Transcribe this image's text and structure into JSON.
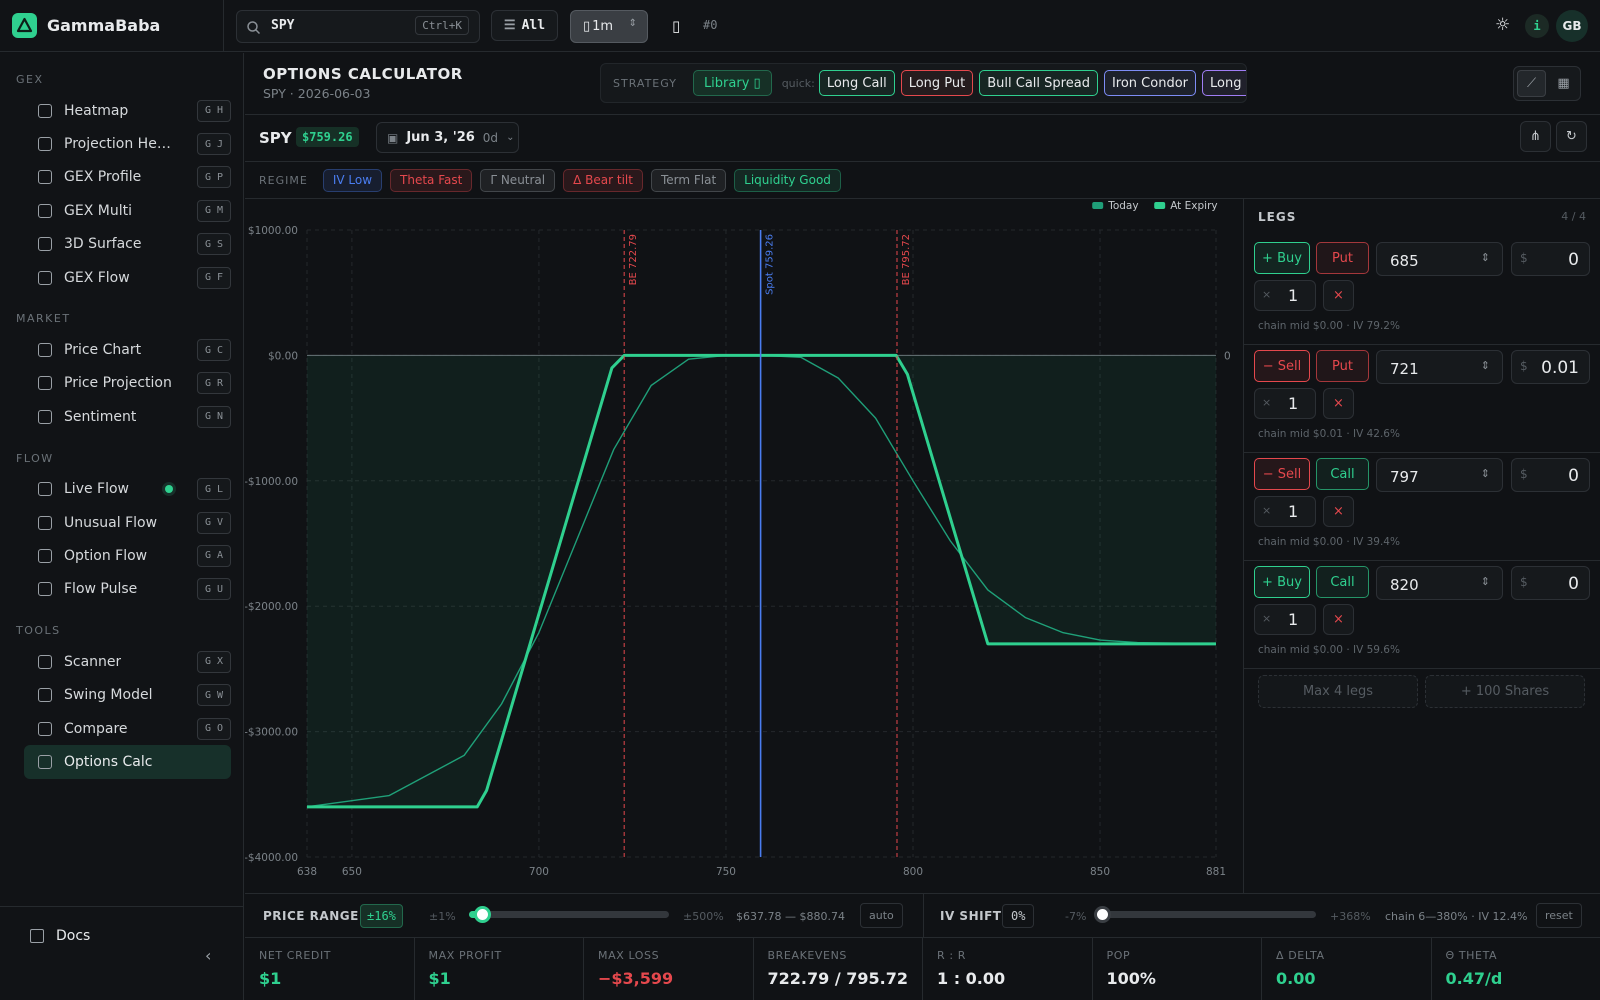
{
  "header": {
    "brand": "GammaBaba",
    "search": "SPY",
    "search_shortcut": "Ctrl+K",
    "filter": "All",
    "interval": "1m",
    "hash": "#0",
    "info": "i",
    "avatar": "GB"
  },
  "sidebar": {
    "sections": [
      {
        "title": "GEX",
        "items": [
          {
            "label": "Heatmap",
            "keys": "G H"
          },
          {
            "label": "Projection Heatmap",
            "keys": "G J"
          },
          {
            "label": "GEX Profile",
            "keys": "G P"
          },
          {
            "label": "GEX Multi",
            "keys": "G M"
          },
          {
            "label": "3D Surface",
            "keys": "G S"
          },
          {
            "label": "GEX Flow",
            "keys": "G F"
          }
        ]
      },
      {
        "title": "MARKET",
        "items": [
          {
            "label": "Price Chart",
            "keys": "G C"
          },
          {
            "label": "Price Projection",
            "keys": "G R"
          },
          {
            "label": "Sentiment",
            "keys": "G N"
          }
        ]
      },
      {
        "title": "FLOW",
        "items": [
          {
            "label": "Live Flow",
            "keys": "G L",
            "live": true
          },
          {
            "label": "Unusual Flow",
            "keys": "G V"
          },
          {
            "label": "Option Flow",
            "keys": "G A"
          },
          {
            "label": "Flow Pulse",
            "keys": "G U"
          }
        ]
      },
      {
        "title": "TOOLS",
        "items": [
          {
            "label": "Scanner",
            "keys": "G X"
          },
          {
            "label": "Swing Model",
            "keys": "G W"
          },
          {
            "label": "Compare",
            "keys": "G O"
          },
          {
            "label": "Options Calc",
            "active": true
          }
        ]
      }
    ],
    "docs": "Docs"
  },
  "page": {
    "title": "OPTIONS CALCULATOR",
    "subtitle": "SPY · 2026-06-03",
    "strategy_label": "STRATEGY",
    "library": "Library",
    "quick_label": "quick:",
    "quick": [
      {
        "label": "Long Call",
        "color": "#2fd08f"
      },
      {
        "label": "Long Put",
        "color": "#e5484d"
      },
      {
        "label": "Bull Call Spread",
        "color": "#2fd08f"
      },
      {
        "label": "Iron Condor",
        "color": "#7d8cf5"
      },
      {
        "label": "Long Strangle",
        "color": "#a07df5"
      }
    ]
  },
  "ticker": {
    "symbol": "SPY",
    "price": "$759.26",
    "date": "Jun 3, '26",
    "dte": "0d"
  },
  "regime": {
    "label": "REGIME",
    "tags": [
      {
        "label": "IV Low",
        "color": "#4a7df0"
      },
      {
        "label": "Theta Fast",
        "color": "#e5484d"
      },
      {
        "label": "Γ Neutral",
        "color": "#8a9096"
      },
      {
        "label": "Δ Bear tilt",
        "color": "#e5484d"
      },
      {
        "label": "Term Flat",
        "color": "#8a9096"
      },
      {
        "label": "Liquidity Good",
        "color": "#2fd08f"
      }
    ]
  },
  "chart_data": {
    "type": "line",
    "series": [
      {
        "name": "Today",
        "color": "#1f9e78",
        "x": [
          638,
          660,
          680,
          690,
          700,
          710,
          720,
          730,
          740,
          750,
          760,
          770,
          780,
          790,
          800,
          810,
          820,
          830,
          840,
          850,
          860,
          881
        ],
        "values": [
          -3600,
          -3510,
          -3190,
          -2780,
          -2210,
          -1480,
          -750,
          -240,
          -30,
          0,
          0,
          -15,
          -180,
          -500,
          -1000,
          -1480,
          -1870,
          -2090,
          -2210,
          -2270,
          -2290,
          -2300
        ]
      },
      {
        "name": "At Expiry",
        "color": "#2fd08f",
        "x": [
          638,
          683.5,
          686,
          719.5,
          722.8,
          795.5,
          798.5,
          820,
          881
        ],
        "values": [
          -3600,
          -3600,
          -3470,
          -100,
          0,
          0,
          -150,
          -2300,
          -2300
        ]
      }
    ],
    "xlim": [
      638,
      881
    ],
    "xticks": [
      638,
      650,
      700,
      750,
      800,
      850,
      881
    ],
    "ylim": [
      -4000,
      1000
    ],
    "yticks": [
      {
        "value": 1000,
        "label": "$1000.00"
      },
      {
        "value": 0,
        "label": "$0.00"
      },
      {
        "value": -1000,
        "label": "-$1000.00"
      },
      {
        "value": -2000,
        "label": "-$2000.00"
      },
      {
        "value": -3000,
        "label": "-$3000.00"
      },
      {
        "value": -4000,
        "label": "-$4000.00"
      }
    ],
    "y2lim": [
      -4000,
      1000
    ],
    "y2ticks": [
      0
    ],
    "annotations": [
      {
        "label": "BE 722.79",
        "x": 722.79,
        "color": "#e5484d",
        "style": "dashed"
      },
      {
        "label": "Spot 759.26",
        "x": 759.26,
        "color": "#4a7df0",
        "style": "solid"
      },
      {
        "label": "BE 795.72",
        "x": 795.72,
        "color": "#e5484d",
        "style": "dashed"
      }
    ],
    "grid": true,
    "legend": "top-right"
  },
  "legs": {
    "title": "LEGS",
    "count": "4 / 4",
    "currency": "$",
    "qty_prefix": "×",
    "remove": "×",
    "items": [
      {
        "side": "+ Buy",
        "side_color": "#2fd08f",
        "type": "Put",
        "type_color": "#e5484d",
        "strike": "685",
        "premium": "0",
        "qty": "1",
        "info": "chain mid $0.00 · IV 79.2%"
      },
      {
        "side": "− Sell",
        "side_color": "#e5484d",
        "type": "Put",
        "type_color": "#e5484d",
        "strike": "721",
        "premium": "0.01",
        "qty": "1",
        "info": "chain mid $0.01 · IV 42.6%"
      },
      {
        "side": "− Sell",
        "side_color": "#e5484d",
        "type": "Call",
        "type_color": "#2fd08f",
        "strike": "797",
        "premium": "0",
        "qty": "1",
        "info": "chain mid $0.00 · IV 39.4%"
      },
      {
        "side": "+ Buy",
        "side_color": "#2fd08f",
        "type": "Call",
        "type_color": "#2fd08f",
        "strike": "820",
        "premium": "0",
        "qty": "1",
        "info": "chain mid $0.00 · IV 59.6%"
      }
    ],
    "buttons": [
      "Max 4 legs",
      "+ 100 Shares"
    ]
  },
  "controls": {
    "price_range": {
      "label": "PRICE RANGE",
      "value": "±16%",
      "min": "±1%",
      "max": "±500%",
      "range": "$637.78 — $880.74",
      "auto": "auto"
    },
    "iv_shift": {
      "label": "IV SHIFT",
      "value": "0%",
      "min": "-7%",
      "max": "+368%",
      "info": "chain 6—380% · IV 12.4%",
      "reset": "reset"
    }
  },
  "stats": [
    {
      "label": "NET CREDIT",
      "value": "$1",
      "color": "#2fd08f"
    },
    {
      "label": "MAX PROFIT",
      "value": "$1",
      "color": "#2fd08f"
    },
    {
      "label": "MAX LOSS",
      "value": "−$3,599",
      "color": "#e5484d"
    },
    {
      "label": "BREAKEVENS",
      "value": "722.79 / 795.72",
      "color": "#e8eaec"
    },
    {
      "label": "R : R",
      "value": "1 : 0.00",
      "color": "#e8eaec"
    },
    {
      "label": "POP",
      "value": "100%",
      "color": "#e8eaec"
    },
    {
      "label": "Δ DELTA",
      "value": "0.00",
      "color": "#2fd08f"
    },
    {
      "label": "Θ THETA",
      "value": "0.47/d",
      "color": "#2fd08f"
    }
  ]
}
